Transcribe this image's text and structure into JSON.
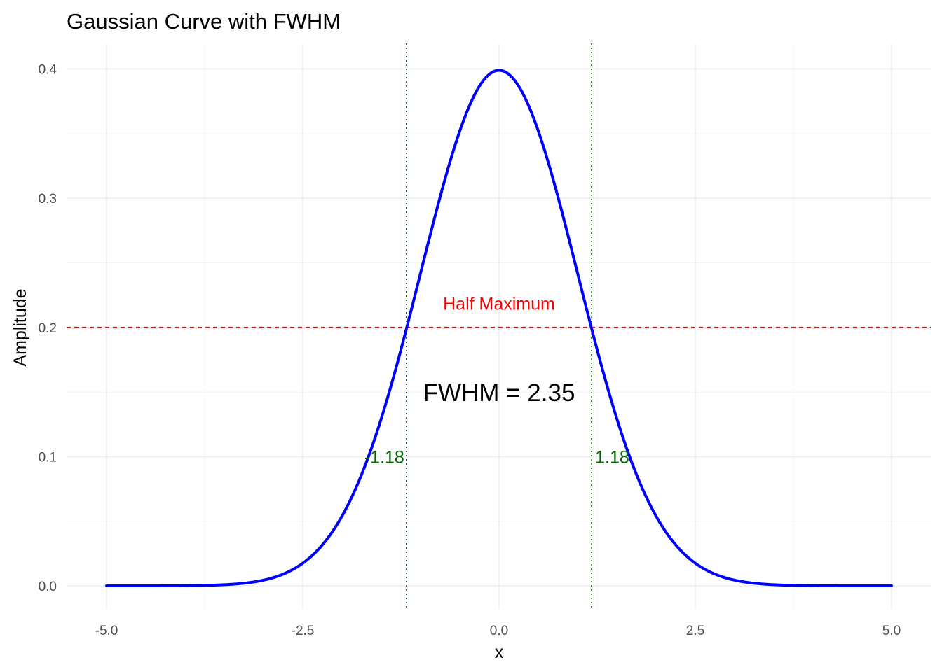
{
  "chart_data": {
    "type": "line",
    "title": "Gaussian Curve with FWHM",
    "xlabel": "x",
    "ylabel": "Amplitude",
    "xlim": [
      -5,
      5
    ],
    "ylim": [
      0,
      0.4
    ],
    "x_ticks": [
      -5.0,
      -2.5,
      0.0,
      2.5,
      5.0
    ],
    "x_tick_labels": [
      "-5.0",
      "-2.5",
      "0.0",
      "2.5",
      "5.0"
    ],
    "y_ticks": [
      0.0,
      0.1,
      0.2,
      0.3,
      0.4
    ],
    "y_tick_labels": [
      "0.0",
      "0.1",
      "0.2",
      "0.3",
      "0.4"
    ],
    "grid": true,
    "series": [
      {
        "color": "#0000ff",
        "mean": 0,
        "sd": 1,
        "x": [
          -5,
          -4.5,
          -4,
          -3.5,
          -3,
          -2.75,
          -2.5,
          -2.25,
          -2,
          -1.75,
          -1.5,
          -1.25,
          -1,
          -0.75,
          -0.5,
          -0.25,
          0,
          0.25,
          0.5,
          0.75,
          1,
          1.25,
          1.5,
          1.75,
          2,
          2.25,
          2.5,
          2.75,
          3,
          3.5,
          4,
          4.5,
          5
        ],
        "y": [
          1.5e-06,
          1.6e-05,
          0.000134,
          0.000873,
          0.004432,
          0.009094,
          0.017528,
          0.03174,
          0.053991,
          0.086277,
          0.129518,
          0.182649,
          0.241971,
          0.301137,
          0.352065,
          0.386668,
          0.398942,
          0.386668,
          0.352065,
          0.301137,
          0.241971,
          0.182649,
          0.129518,
          0.086277,
          0.053991,
          0.03174,
          0.017528,
          0.009094,
          0.004432,
          0.000873,
          0.000134,
          1.6e-05,
          1.5e-06
        ]
      }
    ],
    "half_maximum": {
      "y": 0.2,
      "color": "#ff0000",
      "label": "Half Maximum",
      "label_x": 0,
      "label_y": 0.218
    },
    "fwhm_lines": {
      "color": "#006400",
      "x": [
        -1.18,
        1.18
      ],
      "labels": [
        "-1.18",
        "1.18"
      ],
      "label_y": 0.1
    },
    "fwhm_annotation": {
      "text": "FWHM = 2.35",
      "x": 0,
      "y": 0.149,
      "color": "#000000"
    }
  }
}
